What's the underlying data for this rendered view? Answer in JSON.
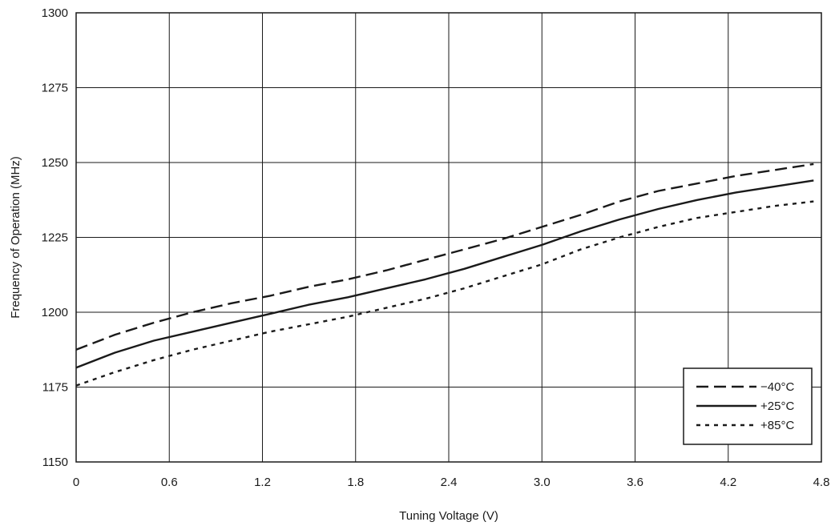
{
  "chart_data": {
    "type": "line",
    "title": "",
    "xlabel": "Tuning Voltage (V)",
    "ylabel": "Frequency of Operation (MHz)",
    "xlim": [
      0,
      4.8
    ],
    "ylim": [
      1150,
      1300
    ],
    "xticks": [
      0,
      0.6,
      1.2,
      1.8,
      2.4,
      3.0,
      3.6,
      4.2,
      4.8
    ],
    "xtick_labels": [
      "0",
      "0.6",
      "1.2",
      "1.8",
      "2.4",
      "3.0",
      "3.6",
      "4.2",
      "4.8"
    ],
    "yticks": [
      1150,
      1175,
      1200,
      1225,
      1250,
      1275,
      1300
    ],
    "ytick_labels": [
      "1150",
      "1175",
      "1200",
      "1225",
      "1250",
      "1275",
      "1300"
    ],
    "grid": true,
    "legend_position": "bottom-right",
    "series": [
      {
        "name": "−40°C",
        "style": "dashed",
        "x": [
          0,
          0.25,
          0.5,
          0.75,
          1.0,
          1.25,
          1.5,
          1.75,
          2.0,
          2.25,
          2.5,
          2.75,
          3.0,
          3.25,
          3.5,
          3.75,
          4.0,
          4.25,
          4.5,
          4.75
        ],
        "y": [
          1187.5,
          1192.5,
          1196.5,
          1200,
          1203,
          1205.5,
          1208.5,
          1211,
          1214,
          1217.5,
          1221,
          1224.5,
          1228.5,
          1232.5,
          1237,
          1240.5,
          1243,
          1245.5,
          1247.5,
          1249.5
        ]
      },
      {
        "name": "+25°C",
        "style": "solid",
        "x": [
          0,
          0.25,
          0.5,
          0.75,
          1.0,
          1.25,
          1.5,
          1.75,
          2.0,
          2.25,
          2.5,
          2.75,
          3.0,
          3.25,
          3.5,
          3.75,
          4.0,
          4.25,
          4.5,
          4.75
        ],
        "y": [
          1181.5,
          1186.5,
          1190.5,
          1193.5,
          1196.5,
          1199.5,
          1202.5,
          1205,
          1208,
          1211,
          1214.5,
          1218.5,
          1222.5,
          1227,
          1231,
          1234.5,
          1237.5,
          1240,
          1242,
          1244
        ]
      },
      {
        "name": "+85°C",
        "style": "dotted",
        "x": [
          0,
          0.25,
          0.5,
          0.75,
          1.0,
          1.25,
          1.5,
          1.75,
          2.0,
          2.25,
          2.5,
          2.75,
          3.0,
          3.25,
          3.5,
          3.75,
          4.0,
          4.25,
          4.5,
          4.75
        ],
        "y": [
          1175.5,
          1180,
          1184,
          1187.5,
          1190.5,
          1193.5,
          1196,
          1198.5,
          1201.5,
          1204.5,
          1208,
          1212,
          1216,
          1221,
          1225,
          1228.5,
          1231.5,
          1233.5,
          1235.5,
          1237
        ]
      }
    ]
  }
}
